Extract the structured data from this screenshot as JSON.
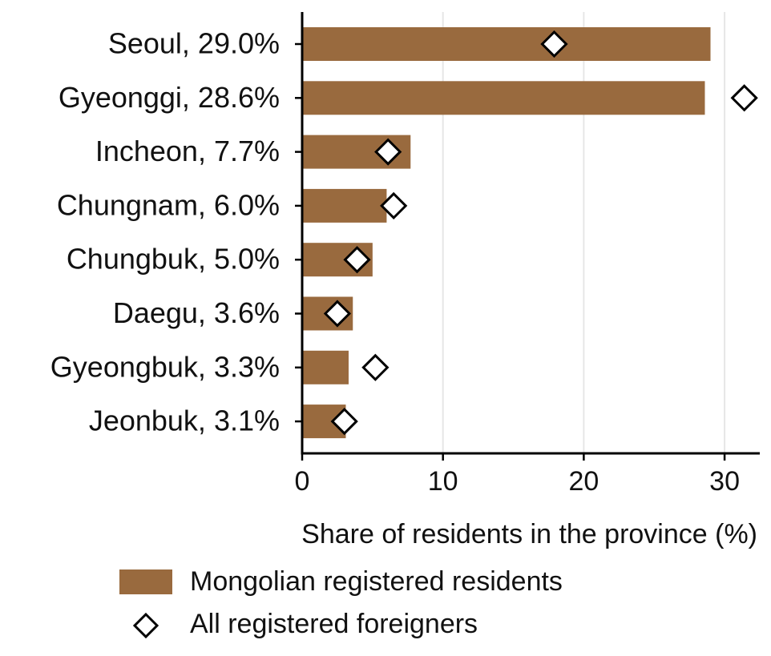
{
  "chart_data": {
    "type": "bar",
    "orientation": "horizontal",
    "categories": [
      "Seoul, 29.0%",
      "Gyeonggi, 28.6%",
      "Incheon, 7.7%",
      "Chungnam, 6.0%",
      "Chungbuk, 5.0%",
      "Daegu, 3.6%",
      "Gyeongbuk, 3.3%",
      "Jeonbuk, 3.1%"
    ],
    "series": [
      {
        "name": "Mongolian registered residents",
        "kind": "bar",
        "color": "#996a3e",
        "values": [
          29.0,
          28.6,
          7.7,
          6.0,
          5.0,
          3.6,
          3.3,
          3.1
        ]
      },
      {
        "name": "All registered foreigners",
        "kind": "marker",
        "marker": "diamond",
        "values": [
          17.9,
          31.4,
          6.1,
          6.5,
          3.9,
          2.5,
          5.2,
          3.0
        ]
      }
    ],
    "xlabel": "Share of residents in the province (%)",
    "ylabel": "",
    "xlim": [
      0,
      32.5
    ],
    "xticks": [
      0,
      10,
      20,
      30
    ],
    "grid": "vertical",
    "legend_position": "bottom"
  }
}
